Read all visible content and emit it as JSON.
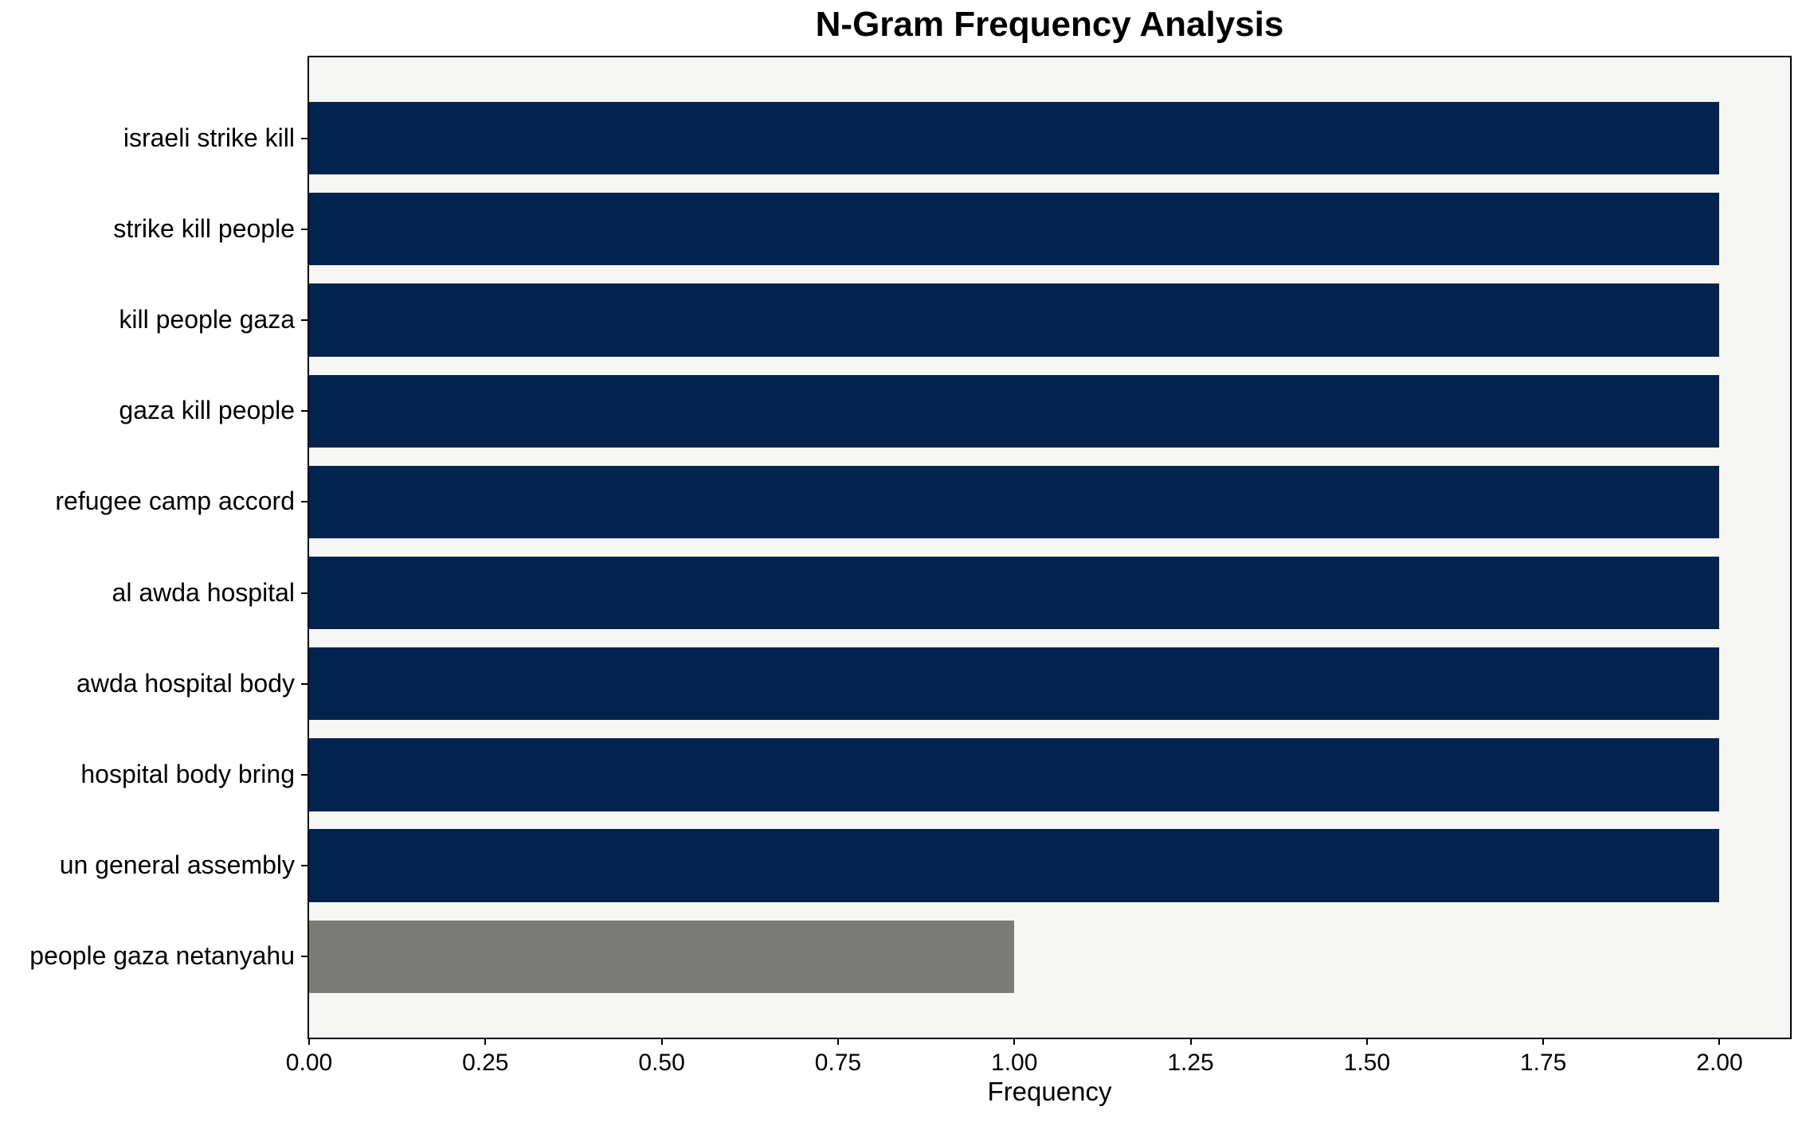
{
  "chart_data": {
    "type": "bar",
    "orientation": "horizontal",
    "title": "N-Gram Frequency Analysis",
    "xlabel": "Frequency",
    "ylabel": "",
    "categories": [
      "israeli strike kill",
      "strike kill people",
      "kill people gaza",
      "gaza kill people",
      "refugee camp accord",
      "al awda hospital",
      "awda hospital body",
      "hospital body bring",
      "un general assembly",
      "people gaza netanyahu"
    ],
    "values": [
      2,
      2,
      2,
      2,
      2,
      2,
      2,
      2,
      2,
      1
    ],
    "bar_colors": [
      "#02234e",
      "#02234e",
      "#02234e",
      "#02234e",
      "#02234e",
      "#02234e",
      "#02234e",
      "#02234e",
      "#02234e",
      "#7b7b78"
    ],
    "xlim": [
      0,
      2.1
    ],
    "xticks": {
      "values": [
        0,
        0.25,
        0.5,
        0.75,
        1.0,
        1.25,
        1.5,
        1.75,
        2.0
      ],
      "labels": [
        "0.00",
        "0.25",
        "0.50",
        "0.75",
        "1.00",
        "1.25",
        "1.50",
        "1.75",
        "2.00"
      ]
    },
    "grid": false,
    "legend_position": "none",
    "bar_height_fraction": 0.8,
    "colors": {
      "plot_background": "#f6f6f4",
      "figure_background": "#ffffff",
      "spine": "#000000",
      "text": "#000000"
    }
  }
}
